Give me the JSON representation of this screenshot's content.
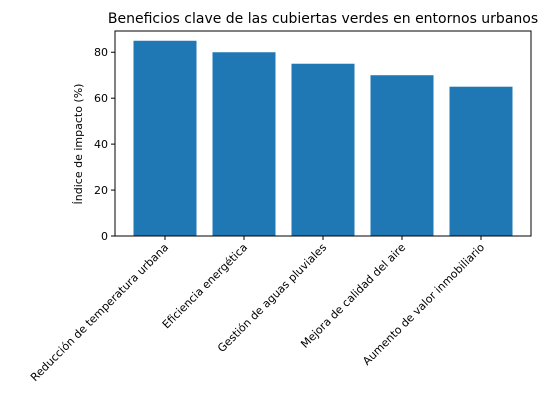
{
  "chart_data": {
    "type": "bar",
    "title": "Beneficios clave de las cubiertas verdes en entornos urbanos",
    "xlabel": "",
    "ylabel": "Índice de impacto (%)",
    "categories": [
      "Reducción de temperatura urbana",
      "Eficiencia energética",
      "Gestión de aguas pluviales",
      "Mejora de calidad del aire",
      "Aumento de valor inmobiliario"
    ],
    "values": [
      85,
      80,
      75,
      70,
      65
    ],
    "ylim": [
      0,
      89.25
    ],
    "yticks": [
      0,
      20,
      40,
      60,
      80
    ],
    "bar_color": "#1f77b4",
    "grid": false,
    "legend": "none"
  }
}
